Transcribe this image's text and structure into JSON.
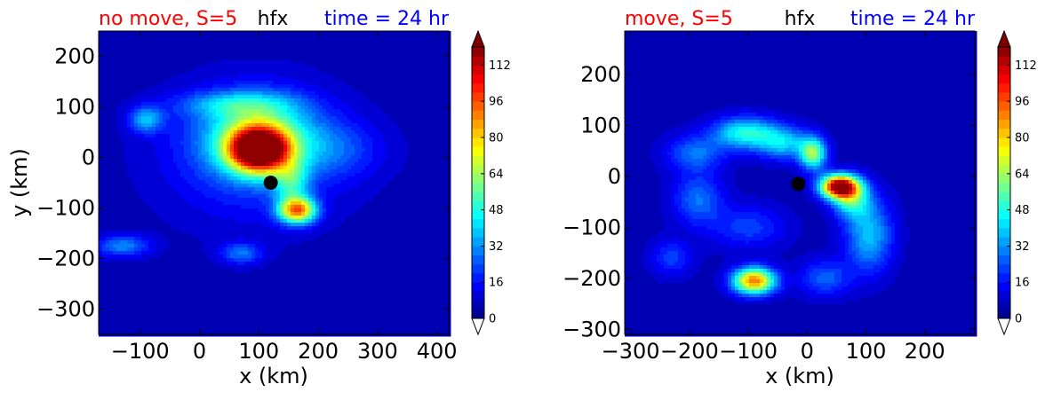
{
  "colors": {
    "left_title": "#ff0000",
    "right_title": "#0000ff",
    "center_title": "#000000",
    "marker": "#000000",
    "colormap": "jet"
  },
  "chart_data": [
    {
      "type": "heatmap",
      "panel": "left",
      "title_left": "no move, S=5",
      "title_center": "hfx",
      "title_right": "time = 24 hr",
      "xlabel": "x (km)",
      "ylabel": "y (km)",
      "xlim": [
        -170,
        420
      ],
      "ylim": [
        -350,
        250
      ],
      "xticks": [
        -100,
        0,
        100,
        200,
        300,
        400
      ],
      "xtick_labels": [
        "−100",
        "0",
        "100",
        "200",
        "300",
        "400"
      ],
      "yticks": [
        200,
        100,
        0,
        -100,
        -200,
        -300
      ],
      "ytick_labels": [
        "200",
        "100",
        "0",
        "−100",
        "−200",
        "−300"
      ],
      "center_marker": {
        "x": 120,
        "y": -50
      },
      "features": [
        {
          "x": 100,
          "y": 15,
          "sx": 35,
          "sy": 30,
          "value": 120
        },
        {
          "x": 100,
          "y": 50,
          "sx": 65,
          "sy": 50,
          "value": 35
        },
        {
          "x": 90,
          "y": 5,
          "sx": 100,
          "sy": 85,
          "value": 20
        },
        {
          "x": 165,
          "y": -105,
          "sx": 22,
          "sy": 18,
          "value": 80
        },
        {
          "x": 155,
          "y": -50,
          "sx": 20,
          "sy": 30,
          "value": 30
        },
        {
          "x": -90,
          "y": 75,
          "sx": 20,
          "sy": 18,
          "value": 30
        },
        {
          "x": -130,
          "y": -175,
          "sx": 32,
          "sy": 15,
          "value": 25
        },
        {
          "x": 70,
          "y": -190,
          "sx": 25,
          "sy": 15,
          "value": 22
        },
        {
          "x": 60,
          "y": 105,
          "sx": 70,
          "sy": 18,
          "value": 22
        },
        {
          "x": 230,
          "y": 15,
          "sx": 55,
          "sy": 40,
          "value": 14
        }
      ],
      "base_value": 6,
      "colorbar": {
        "min": 0,
        "max": 120,
        "step": 4,
        "ticks": [
          0,
          16,
          32,
          48,
          64,
          80,
          96,
          112
        ],
        "extend": "both"
      }
    },
    {
      "type": "heatmap",
      "panel": "right",
      "title_left": "move, S=5",
      "title_center": "hfx",
      "title_right": "time = 24 hr",
      "xlabel": "x (km)",
      "ylabel": "",
      "xlim": [
        -310,
        285
      ],
      "ylim": [
        -310,
        285
      ],
      "xticks": [
        -300,
        -200,
        -100,
        0,
        100,
        200
      ],
      "xtick_labels": [
        "−300",
        "−200",
        "−100",
        "0",
        "100",
        "200"
      ],
      "yticks": [
        200,
        100,
        0,
        -100,
        -200,
        -300
      ],
      "ytick_labels": [
        "200",
        "100",
        "0",
        "−100",
        "−200",
        "−300"
      ],
      "center_marker": {
        "x": -15,
        "y": -15
      },
      "features": [
        {
          "x": 55,
          "y": -20,
          "sx": 22,
          "sy": 16,
          "value": 115
        },
        {
          "x": 10,
          "y": 45,
          "sx": 16,
          "sy": 22,
          "value": 55
        },
        {
          "x": 75,
          "y": -45,
          "sx": 22,
          "sy": 25,
          "value": 40
        },
        {
          "x": -90,
          "y": -205,
          "sx": 25,
          "sy": 18,
          "value": 85
        },
        {
          "x": -105,
          "y": 85,
          "sx": 38,
          "sy": 22,
          "value": 42
        },
        {
          "x": -40,
          "y": 65,
          "sx": 30,
          "sy": 22,
          "value": 32
        },
        {
          "x": 105,
          "y": -115,
          "sx": 28,
          "sy": 50,
          "value": 32
        },
        {
          "x": -185,
          "y": -45,
          "sx": 30,
          "sy": 35,
          "value": 22
        },
        {
          "x": -190,
          "y": 45,
          "sx": 35,
          "sy": 25,
          "value": 22
        },
        {
          "x": 30,
          "y": -200,
          "sx": 30,
          "sy": 25,
          "value": 20
        },
        {
          "x": -100,
          "y": -100,
          "sx": 45,
          "sy": 30,
          "value": 16
        },
        {
          "x": -230,
          "y": -160,
          "sx": 25,
          "sy": 25,
          "value": 16
        }
      ],
      "base_value": 6,
      "colorbar": {
        "min": 0,
        "max": 120,
        "step": 4,
        "ticks": [
          0,
          16,
          32,
          48,
          64,
          80,
          96,
          112
        ],
        "extend": "both"
      }
    }
  ]
}
